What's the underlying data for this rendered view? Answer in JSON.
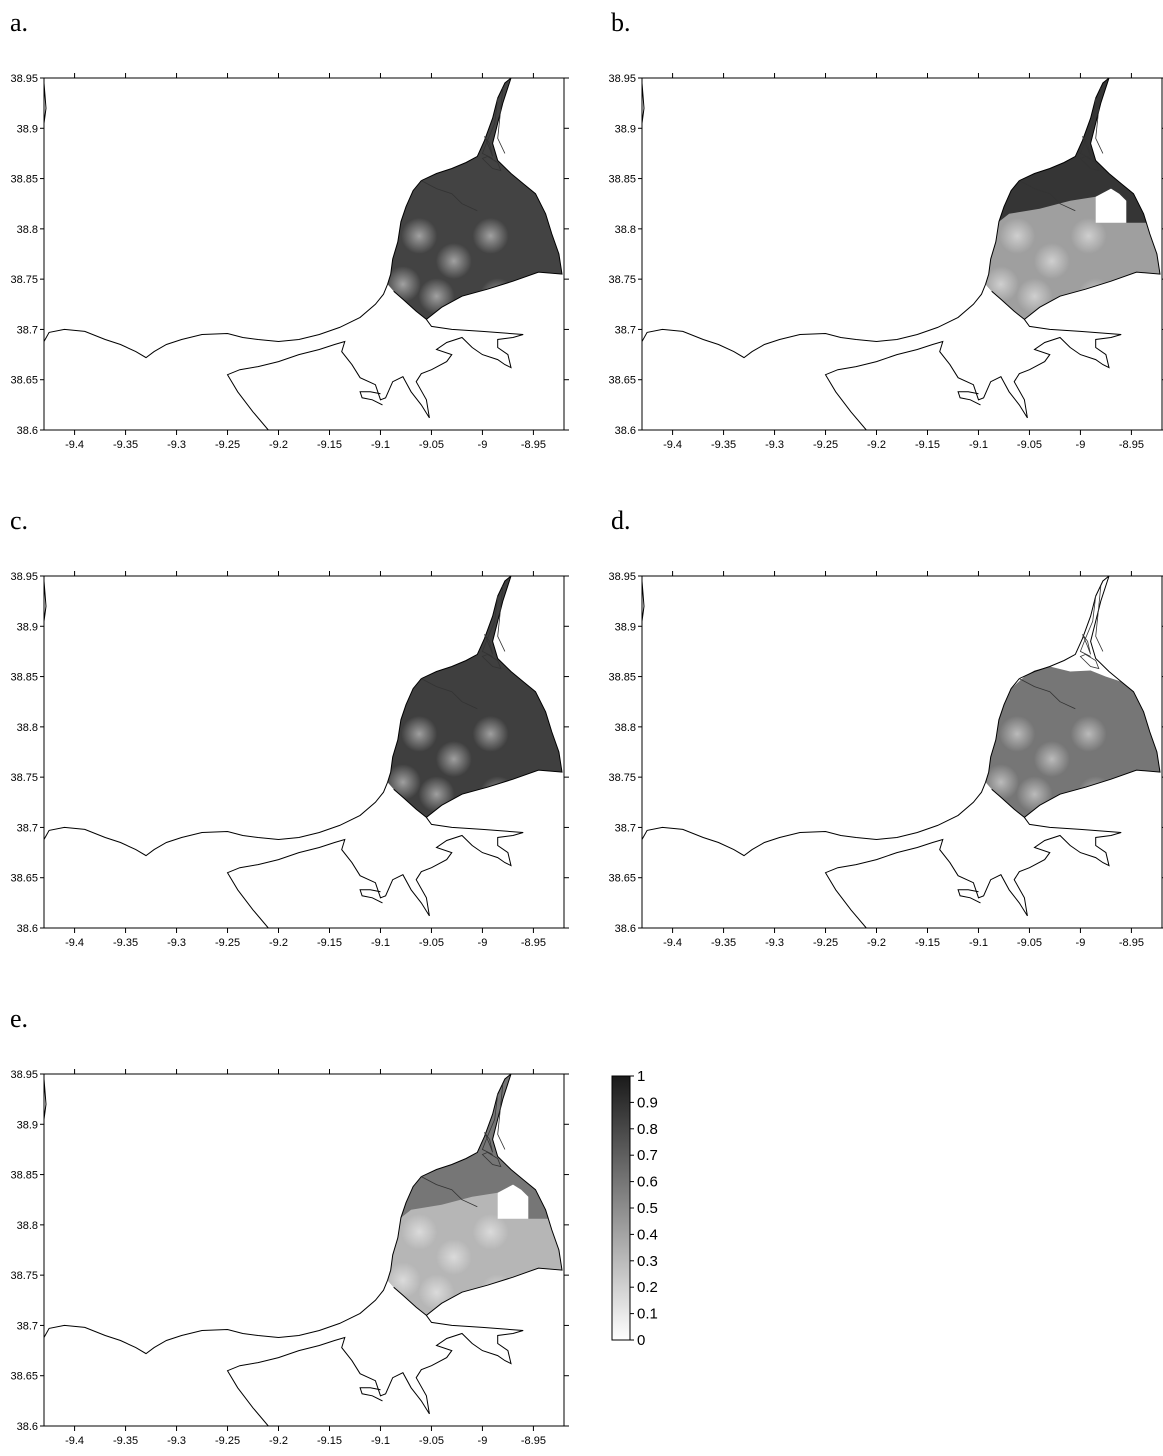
{
  "figure": {
    "panels": [
      {
        "label": "a.",
        "shade": 0.82,
        "variant": "full",
        "ring_gap": true
      },
      {
        "label": "b.",
        "shade": 0.88,
        "variant": "split",
        "lower_shade": 0.42,
        "ring_gap": false
      },
      {
        "label": "c.",
        "shade": 0.84,
        "variant": "full",
        "ring_gap": false
      },
      {
        "label": "d.",
        "shade": 0.6,
        "variant": "lower",
        "ring_gap": false
      },
      {
        "label": "e.",
        "shade": 0.6,
        "variant": "split",
        "lower_shade": 0.32,
        "ring_gap": false
      }
    ],
    "x_axis": {
      "range": [
        -9.43,
        -8.92
      ],
      "ticks": [
        "-9.4",
        "-9.35",
        "-9.3",
        "-9.25",
        "-9.2",
        "-9.15",
        "-9.1",
        "-9.05",
        "-9",
        "-8.95"
      ],
      "tick_values": [
        -9.4,
        -9.35,
        -9.3,
        -9.25,
        -9.2,
        -9.15,
        -9.1,
        -9.05,
        -9.0,
        -8.95
      ]
    },
    "y_axis": {
      "range": [
        38.6,
        38.95
      ],
      "ticks": [
        "38.6",
        "38.65",
        "38.7",
        "38.75",
        "38.8",
        "38.85",
        "38.9",
        "38.95"
      ],
      "tick_values": [
        38.6,
        38.65,
        38.7,
        38.75,
        38.8,
        38.85,
        38.9,
        38.95
      ]
    },
    "colorbar": {
      "range": [
        0,
        1
      ],
      "ticks": [
        "0",
        "0.1",
        "0.2",
        "0.3",
        "0.4",
        "0.5",
        "0.6",
        "0.7",
        "0.8",
        "0.9",
        "1"
      ],
      "low_color": "#ffffff",
      "high_color": "#1a1a1a"
    },
    "colors": {
      "outline": "#000000",
      "background": "#ffffff"
    }
  }
}
